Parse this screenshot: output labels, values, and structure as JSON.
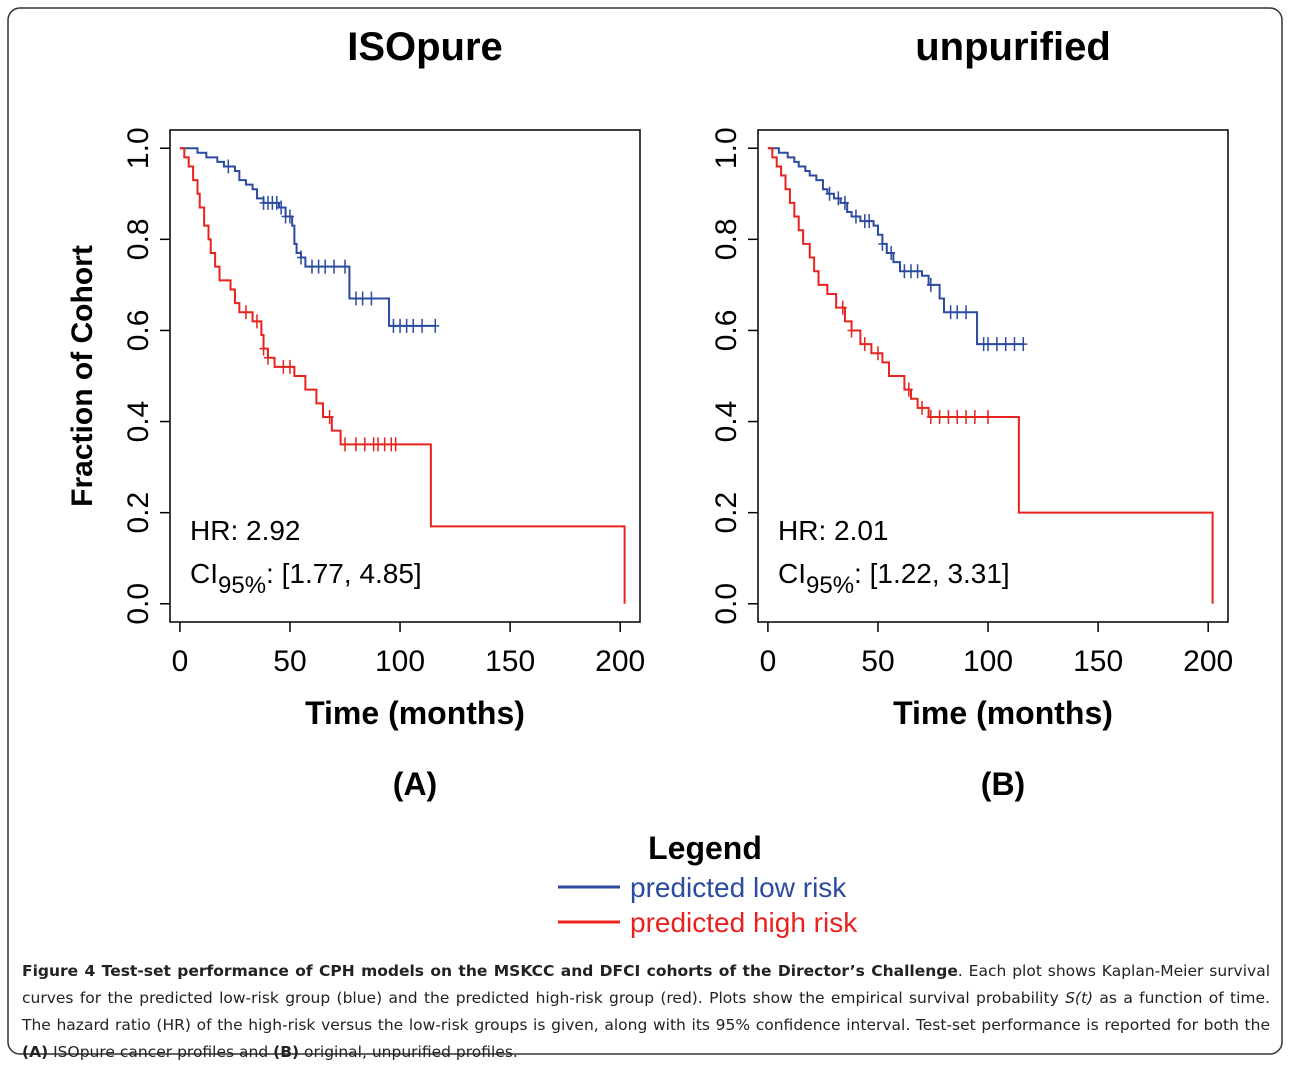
{
  "chart_data": [
    {
      "type": "step",
      "title": "ISOpure",
      "xlabel": "Time (months)",
      "ylabel": "Fraction of Cohort",
      "panel": "(A)",
      "xlim": [
        -4.5,
        209
      ],
      "ylim": [
        -0.04,
        1.04
      ],
      "xticks": [
        0,
        50,
        100,
        150,
        200
      ],
      "yticks": [
        {
          "value": 0,
          "label": "0.0"
        },
        0.2,
        0.4,
        0.6,
        0.8,
        {
          "value": 1,
          "label": "1.0"
        }
      ],
      "annotation": {
        "hr": "HR: 2.92",
        "ci": "CI",
        "ci_sub": "95%",
        "ci_text": ": [1.77, 4.85]"
      },
      "series": [
        {
          "name": "predicted low risk",
          "color": "#2b4aa0",
          "x": [
            0,
            8,
            12,
            17,
            20,
            25,
            27,
            30,
            33,
            35,
            38,
            45,
            48,
            51,
            52,
            53,
            55,
            57,
            77,
            95,
            116
          ],
          "values": [
            1,
            0.99,
            0.98,
            0.97,
            0.96,
            0.95,
            0.93,
            0.92,
            0.91,
            0.89,
            0.88,
            0.87,
            0.85,
            0.83,
            0.79,
            0.77,
            0.76,
            0.74,
            0.67,
            0.61,
            0.61
          ],
          "censored": [
            22,
            38,
            40,
            42,
            44,
            46,
            48,
            50,
            55,
            60,
            63,
            66,
            70,
            75,
            80,
            83,
            87,
            97,
            100,
            103,
            106,
            110,
            116
          ]
        },
        {
          "name": "predicted high risk",
          "color": "#e8221e",
          "x": [
            0,
            2,
            4,
            6,
            8,
            9,
            11,
            13,
            14,
            16,
            18,
            23,
            25,
            27,
            33,
            37,
            38,
            40,
            43,
            52,
            57,
            62,
            65,
            69,
            73,
            114,
            202
          ],
          "values": [
            1,
            0.98,
            0.96,
            0.93,
            0.9,
            0.87,
            0.83,
            0.8,
            0.77,
            0.74,
            0.71,
            0.69,
            0.66,
            0.64,
            0.62,
            0.59,
            0.56,
            0.54,
            0.52,
            0.5,
            0.47,
            0.44,
            0.41,
            0.38,
            0.35,
            0.17,
            0
          ],
          "censored": [
            30,
            35,
            38,
            40,
            47,
            50,
            68,
            75,
            80,
            84,
            88,
            90,
            93,
            96,
            98
          ]
        }
      ]
    },
    {
      "type": "step",
      "title": "unpurified",
      "xlabel": "Time (months)",
      "panel": "(B)",
      "xlim": [
        -4.5,
        209
      ],
      "ylim": [
        -0.04,
        1.04
      ],
      "xticks": [
        0,
        50,
        100,
        150,
        200
      ],
      "yticks": [
        {
          "value": 0,
          "label": "0.0"
        },
        0.2,
        0.4,
        0.6,
        0.8,
        {
          "value": 1,
          "label": "1.0"
        }
      ],
      "annotation": {
        "hr": "HR: 2.01",
        "ci": "CI",
        "ci_sub": "95%",
        "ci_text": ": [1.22, 3.31]"
      },
      "series": [
        {
          "name": "predicted low risk",
          "color": "#2b4aa0",
          "x": [
            0,
            5,
            9,
            12,
            14,
            17,
            19,
            22,
            25,
            27,
            30,
            33,
            36,
            38,
            42,
            48,
            50,
            52,
            54,
            57,
            60,
            70,
            73,
            78,
            80,
            95,
            116
          ],
          "values": [
            1,
            0.99,
            0.98,
            0.97,
            0.96,
            0.95,
            0.94,
            0.93,
            0.91,
            0.9,
            0.89,
            0.88,
            0.86,
            0.85,
            0.84,
            0.83,
            0.81,
            0.79,
            0.77,
            0.75,
            0.73,
            0.72,
            0.7,
            0.67,
            0.64,
            0.57,
            0.57
          ],
          "censored": [
            28,
            32,
            35,
            40,
            44,
            46,
            52,
            56,
            62,
            65,
            68,
            74,
            83,
            86,
            90,
            98,
            100,
            104,
            108,
            112,
            116
          ]
        },
        {
          "name": "predicted high risk",
          "color": "#e8221e",
          "x": [
            0,
            2,
            4,
            6,
            8,
            10,
            12,
            14,
            16,
            19,
            21,
            23,
            27,
            31,
            35,
            38,
            42,
            47,
            52,
            55,
            62,
            65,
            68,
            73,
            114,
            202
          ],
          "values": [
            1,
            0.98,
            0.96,
            0.94,
            0.91,
            0.88,
            0.85,
            0.82,
            0.79,
            0.76,
            0.73,
            0.7,
            0.68,
            0.65,
            0.62,
            0.6,
            0.57,
            0.55,
            0.53,
            0.5,
            0.47,
            0.45,
            0.43,
            0.41,
            0.2,
            0
          ],
          "censored": [
            34,
            38,
            44,
            50,
            64,
            70,
            74,
            78,
            82,
            86,
            90,
            94,
            100
          ]
        }
      ]
    }
  ],
  "legend": {
    "title": "Legend"
  },
  "caption": [
    {
      "text": "Figure 4 Test-set performance of CPH models on the MSKCC and DFCI cohorts of the Director’s Challenge",
      "style": "bold"
    },
    {
      "text": ". Each plot shows Kaplan-Meier survival curves for the predicted low-risk group (blue) and the predicted high-risk group (red). Plots show the empirical survival probability ",
      "style": "normal"
    },
    {
      "text": "S(t)",
      "style": "italic"
    },
    {
      "text": " as a function of time. The hazard ratio (HR) of the high-risk versus the low-risk groups is given, along with its 95% confidence interval. Test-set performance is reported for both the ",
      "style": "normal"
    },
    {
      "text": "(A)",
      "style": "bold"
    },
    {
      "text": " ISOpure cancer profiles and ",
      "style": "normal"
    },
    {
      "text": "(B)",
      "style": "bold"
    },
    {
      "text": " original, unpurified profiles.",
      "style": "normal"
    }
  ]
}
